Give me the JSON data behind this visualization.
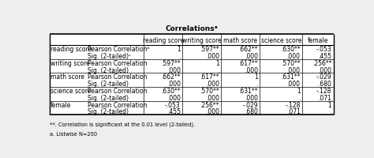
{
  "title": "Correlationsᵃ",
  "footnotes": [
    "**. Correlation is significant at the 0.01 level (2-tailed).",
    "a. Listwise N=200"
  ],
  "rows": [
    {
      "row_label": "reading score",
      "sub_label": "Pearson Correlationᵇ",
      "values": [
        "1",
        ".597**",
        ".662**",
        ".630**",
        "-.053"
      ]
    },
    {
      "row_label": "",
      "sub_label": "Sig. (2-tailed)ᶜ",
      "values": [
        ".",
        ".000",
        ".000",
        ".000",
        ".455"
      ]
    },
    {
      "row_label": "writing score",
      "sub_label": "Pearson Correlation",
      "values": [
        ".597**",
        "1",
        ".617**",
        ".570**",
        ".256**"
      ]
    },
    {
      "row_label": "",
      "sub_label": "Sig. (2-tailed)",
      "values": [
        ".000",
        ".",
        ".000",
        ".000",
        ".000"
      ]
    },
    {
      "row_label": "math score",
      "sub_label": "Pearson Correlation",
      "values": [
        ".662**",
        ".617**",
        "1",
        ".631**",
        "-.029"
      ]
    },
    {
      "row_label": "",
      "sub_label": "Sig. (2-tailed)",
      "values": [
        ".000",
        ".000",
        ".",
        ".000",
        ".680"
      ]
    },
    {
      "row_label": "science score",
      "sub_label": "Pearson Correlation",
      "values": [
        ".630**",
        ".570**",
        ".631**",
        "1",
        "-.128"
      ]
    },
    {
      "row_label": "",
      "sub_label": "Sig. (2-tailed)",
      "values": [
        ".000",
        ".000",
        ".000",
        ".",
        ".071"
      ]
    },
    {
      "row_label": "female",
      "sub_label": "Pearson Correlation",
      "values": [
        "-.053",
        ".256**",
        "-.029",
        "-.128",
        "1"
      ]
    },
    {
      "row_label": "",
      "sub_label": "Sig. (2-tailed)",
      "values": [
        ".455",
        ".000",
        ".680",
        ".071",
        "."
      ]
    }
  ],
  "col_headers": [
    "reading score",
    "writing score",
    "math score",
    "science score",
    "female"
  ],
  "bg_color": "#eeeeee",
  "font_size": 5.5,
  "title_font_size": 6.5
}
